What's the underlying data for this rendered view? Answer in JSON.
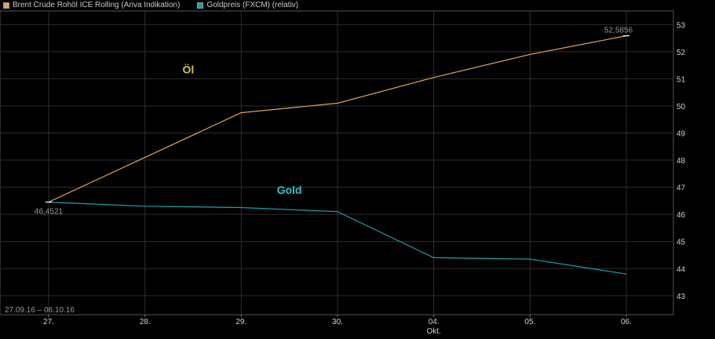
{
  "legend": {
    "items": [
      {
        "label": "Brent Crude Rohöl ICE Rolling (Ariva Indikation)",
        "color": "#e6a15c"
      },
      {
        "label": "Goldpreis (FXCM) (relativ)",
        "color": "#1aa3a8"
      }
    ]
  },
  "chart_data": {
    "type": "line",
    "categories": [
      "27.",
      "28.",
      "29.",
      "30.",
      "04.",
      "05.",
      "06."
    ],
    "month_label": "Okt.",
    "date_range": "27.09.16 – 06.10.16",
    "ylim": [
      42.3,
      53.5
    ],
    "yticks": [
      43,
      44,
      45,
      46,
      47,
      48,
      49,
      50,
      51,
      52,
      53
    ],
    "grid": true,
    "legend_position": "top-left",
    "series": [
      {
        "name": "Brent Crude Rohöl ICE Rolling (Ariva Indikation)",
        "color": "#e6a15c",
        "values": [
          46.4521,
          48.1,
          49.75,
          50.1,
          51.05,
          51.9,
          52.5856
        ]
      },
      {
        "name": "Goldpreis (FXCM) (relativ)",
        "color": "#1aa3a8",
        "values": [
          46.45,
          46.3,
          46.25,
          46.1,
          44.4,
          44.35,
          43.8
        ]
      }
    ],
    "annotations": [
      {
        "text": "Öl",
        "color": "#d2c43a",
        "x_index": 1.45,
        "y": 51.2
      },
      {
        "text": "Gold",
        "color": "#2ec6cc",
        "x_index": 2.5,
        "y": 46.75
      }
    ],
    "value_labels": [
      {
        "text": "46,4521",
        "series": 0,
        "index": 0
      },
      {
        "text": "52,5856",
        "series": 0,
        "index": 6
      }
    ]
  }
}
